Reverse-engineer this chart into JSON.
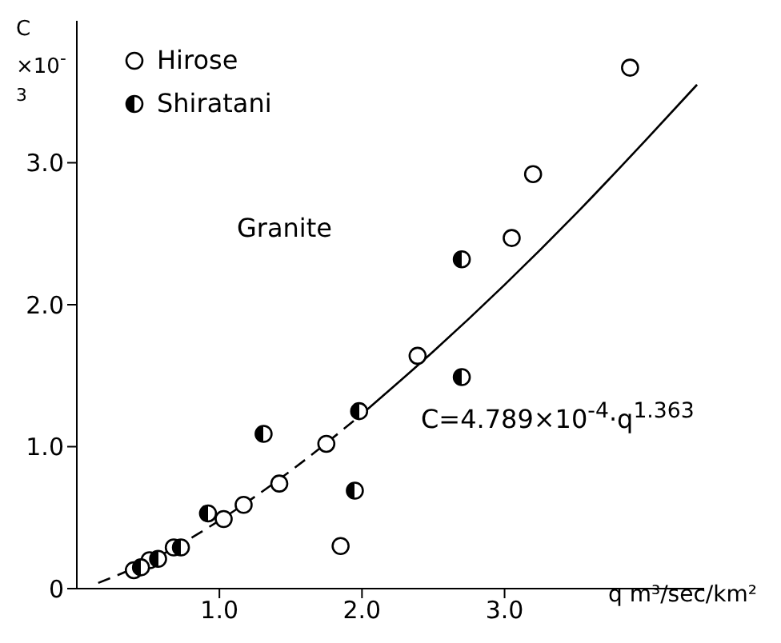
{
  "chart_data": {
    "type": "scatter",
    "xlabel": "q m³/sec/km²",
    "ylabel": "C ×10$^{-3}$",
    "annotations": [
      "Granite",
      "C=4.789×10$^{-4}$·q$^{1.363}$"
    ],
    "xlim": [
      0,
      4.4
    ],
    "xticks": [
      {
        "value": 1,
        "label": "1.0"
      },
      {
        "value": 2,
        "label": "2.0"
      },
      {
        "value": 3,
        "label": "3.0"
      }
    ],
    "ylim": [
      0,
      4.0
    ],
    "yticks": [
      {
        "value": 0,
        "label": "0"
      },
      {
        "value": 1,
        "label": "1.0"
      },
      {
        "value": 2,
        "label": "2.0"
      },
      {
        "value": 3,
        "label": "3.0"
      }
    ],
    "grid": false,
    "legend": "top left",
    "marker": "circle",
    "series": [
      {
        "name": "Hirose",
        "color": "#000000",
        "x": [
          0.4,
          0.51,
          0.68,
          1.03,
          1.17,
          1.42,
          1.75,
          1.85,
          2.39,
          3.05,
          3.2,
          3.88
        ],
        "values": [
          0.13,
          0.2,
          0.29,
          0.49,
          0.59,
          0.74,
          1.02,
          0.3,
          1.64,
          2.47,
          2.92,
          3.67
        ]
      },
      {
        "name": "Shiratani",
        "color": "#000000",
        "x": [
          0.45,
          0.57,
          0.73,
          0.92,
          1.31,
          1.95,
          1.98,
          2.7,
          2.7
        ],
        "values": [
          0.15,
          0.21,
          0.29,
          0.53,
          1.09,
          0.69,
          1.25,
          1.49,
          2.32
        ]
      },
      {
        "type": "line",
        "color": "#000000",
        "line_style": "dashed",
        "marker": "none",
        "x": [
          0.15,
          0.5,
          1.0,
          1.5,
          2.0
        ],
        "values": [
          0.04,
          0.19,
          0.48,
          0.83,
          1.23
        ]
      },
      {
        "type": "line",
        "color": "#000000",
        "line_style": "solid",
        "marker": "none",
        "x": [
          2.0,
          2.5,
          3.0,
          3.5,
          4.0,
          4.35
        ],
        "values": [
          1.23,
          1.67,
          2.14,
          2.64,
          3.17,
          3.55
        ]
      }
    ]
  }
}
